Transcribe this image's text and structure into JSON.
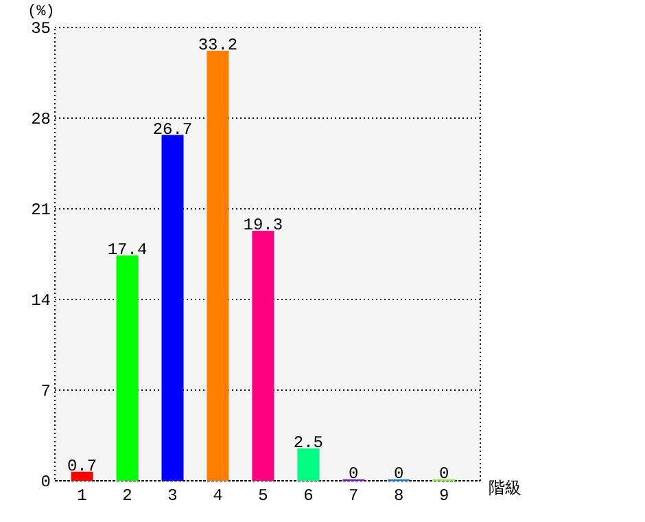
{
  "chart_data": {
    "type": "bar",
    "ylabel": "(%)",
    "xlabel": "階級",
    "categories": [
      "1",
      "2",
      "3",
      "4",
      "5",
      "6",
      "7",
      "8",
      "9"
    ],
    "values": [
      0.7,
      17.4,
      26.7,
      33.2,
      19.3,
      2.5,
      0,
      0,
      0
    ],
    "colors": [
      "#ff0000",
      "#00ff00",
      "#0000ff",
      "#ff8000",
      "#ff0080",
      "#00ff80",
      "#8000ff",
      "#0080ff",
      "#80ff00"
    ],
    "ylim": [
      0,
      35
    ],
    "yticks": [
      0,
      7,
      14,
      21,
      28,
      35
    ],
    "grid": "y",
    "data_labels": true
  }
}
